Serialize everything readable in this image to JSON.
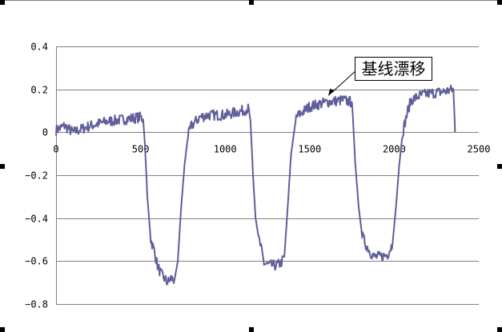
{
  "chart_data": {
    "type": "line",
    "title": "",
    "xlabel": "",
    "ylabel": "",
    "xlim": [
      0,
      2500
    ],
    "ylim": [
      -0.8,
      0.4
    ],
    "x_ticks": [
      "0",
      "500",
      "1000",
      "1500",
      "2000",
      "2500"
    ],
    "y_ticks": [
      "0.4",
      "0.2",
      "0",
      "-0.2",
      "-0.4",
      "-0.6",
      "-0.8"
    ],
    "grid": {
      "horizontal": true,
      "vertical": false
    },
    "legend": null,
    "line_color": "#5f5f9a",
    "series": [
      {
        "name": "signal",
        "x": [
          0,
          50,
          100,
          200,
          300,
          400,
          500,
          515,
          525,
          540,
          560,
          580,
          600,
          620,
          640,
          660,
          680,
          700,
          720,
          740,
          760,
          780,
          800,
          850,
          900,
          1000,
          1100,
          1140,
          1150,
          1165,
          1180,
          1200,
          1215,
          1230,
          1260,
          1300,
          1330,
          1350,
          1370,
          1390,
          1420,
          1450,
          1500,
          1600,
          1700,
          1750,
          1755,
          1770,
          1790,
          1810,
          1830,
          1860,
          1880,
          1920,
          1960,
          1990,
          2010,
          2030,
          2050,
          2080,
          2100,
          2150,
          2200,
          2300,
          2350,
          2355,
          2360
        ],
        "y": [
          0.01,
          0.03,
          0.0,
          0.03,
          0.05,
          0.06,
          0.07,
          0.06,
          -0.05,
          -0.3,
          -0.5,
          -0.55,
          -0.62,
          -0.66,
          -0.68,
          -0.7,
          -0.68,
          -0.69,
          -0.6,
          -0.35,
          -0.15,
          -0.02,
          0.03,
          0.07,
          0.08,
          0.08,
          0.1,
          0.11,
          0.05,
          -0.2,
          -0.4,
          -0.5,
          -0.55,
          -0.61,
          -0.62,
          -0.62,
          -0.61,
          -0.58,
          -0.35,
          -0.1,
          0.07,
          0.09,
          0.12,
          0.14,
          0.15,
          0.14,
          0.08,
          -0.15,
          -0.35,
          -0.48,
          -0.52,
          -0.56,
          -0.58,
          -0.58,
          -0.57,
          -0.52,
          -0.35,
          -0.15,
          0.0,
          0.1,
          0.15,
          0.17,
          0.18,
          0.19,
          0.2,
          0.1,
          0.0
        ]
      }
    ],
    "annotations": [
      {
        "text": "基线漂移",
        "arrow_to": {
          "x": 1630,
          "y": 0.17
        }
      }
    ]
  },
  "axis": {
    "x_labels": [
      "0",
      "500",
      "1000",
      "1500",
      "2000",
      "2500"
    ],
    "y_labels": [
      "0.4",
      "0.2",
      "0",
      "-0.2",
      "-0.4",
      "-0.6",
      "-0.8"
    ]
  },
  "annotation_label": "基线漂移"
}
